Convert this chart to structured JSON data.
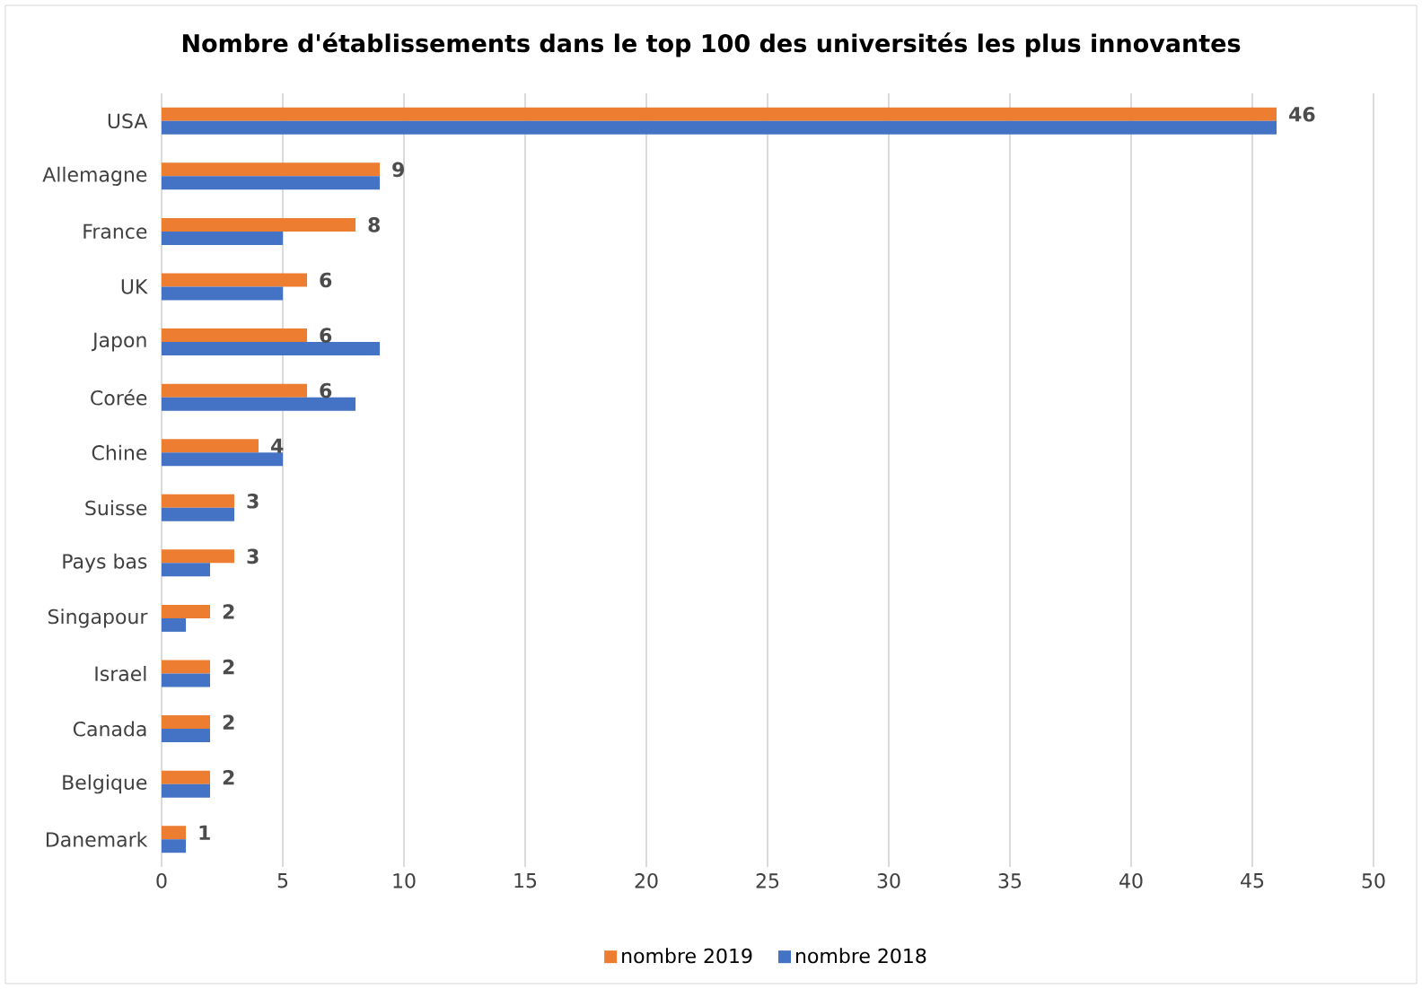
{
  "chart_data": {
    "type": "bar",
    "orientation": "horizontal",
    "title": "Nombre d'établissements dans le top 100 des universités les plus innovantes",
    "categories": [
      "USA",
      "Allemagne",
      "France",
      "UK",
      "Japon",
      "Corée",
      "Chine",
      "Suisse",
      "Pays bas",
      "Singapour",
      "Israel",
      "Canada",
      "Belgique",
      "Danemark"
    ],
    "series": [
      {
        "name": "nombre 2019",
        "color": "#ed7d31",
        "values": [
          46,
          9,
          8,
          6,
          6,
          6,
          4,
          3,
          3,
          2,
          2,
          2,
          2,
          1
        ],
        "value_labels": [
          "46",
          "9",
          "8",
          "6",
          "6",
          "6",
          "4",
          "3",
          "3",
          "2",
          "2",
          "2",
          "2",
          "1"
        ]
      },
      {
        "name": "nombre 2018",
        "color": "#4472c4",
        "values": [
          46,
          9,
          5,
          5,
          9,
          8,
          5,
          3,
          2,
          1,
          2,
          2,
          2,
          1
        ]
      }
    ],
    "xlim": [
      0,
      50
    ],
    "xticks": [
      0,
      5,
      10,
      15,
      20,
      25,
      30,
      35,
      40,
      45,
      50
    ],
    "grid": "x",
    "legend": "bottom"
  }
}
